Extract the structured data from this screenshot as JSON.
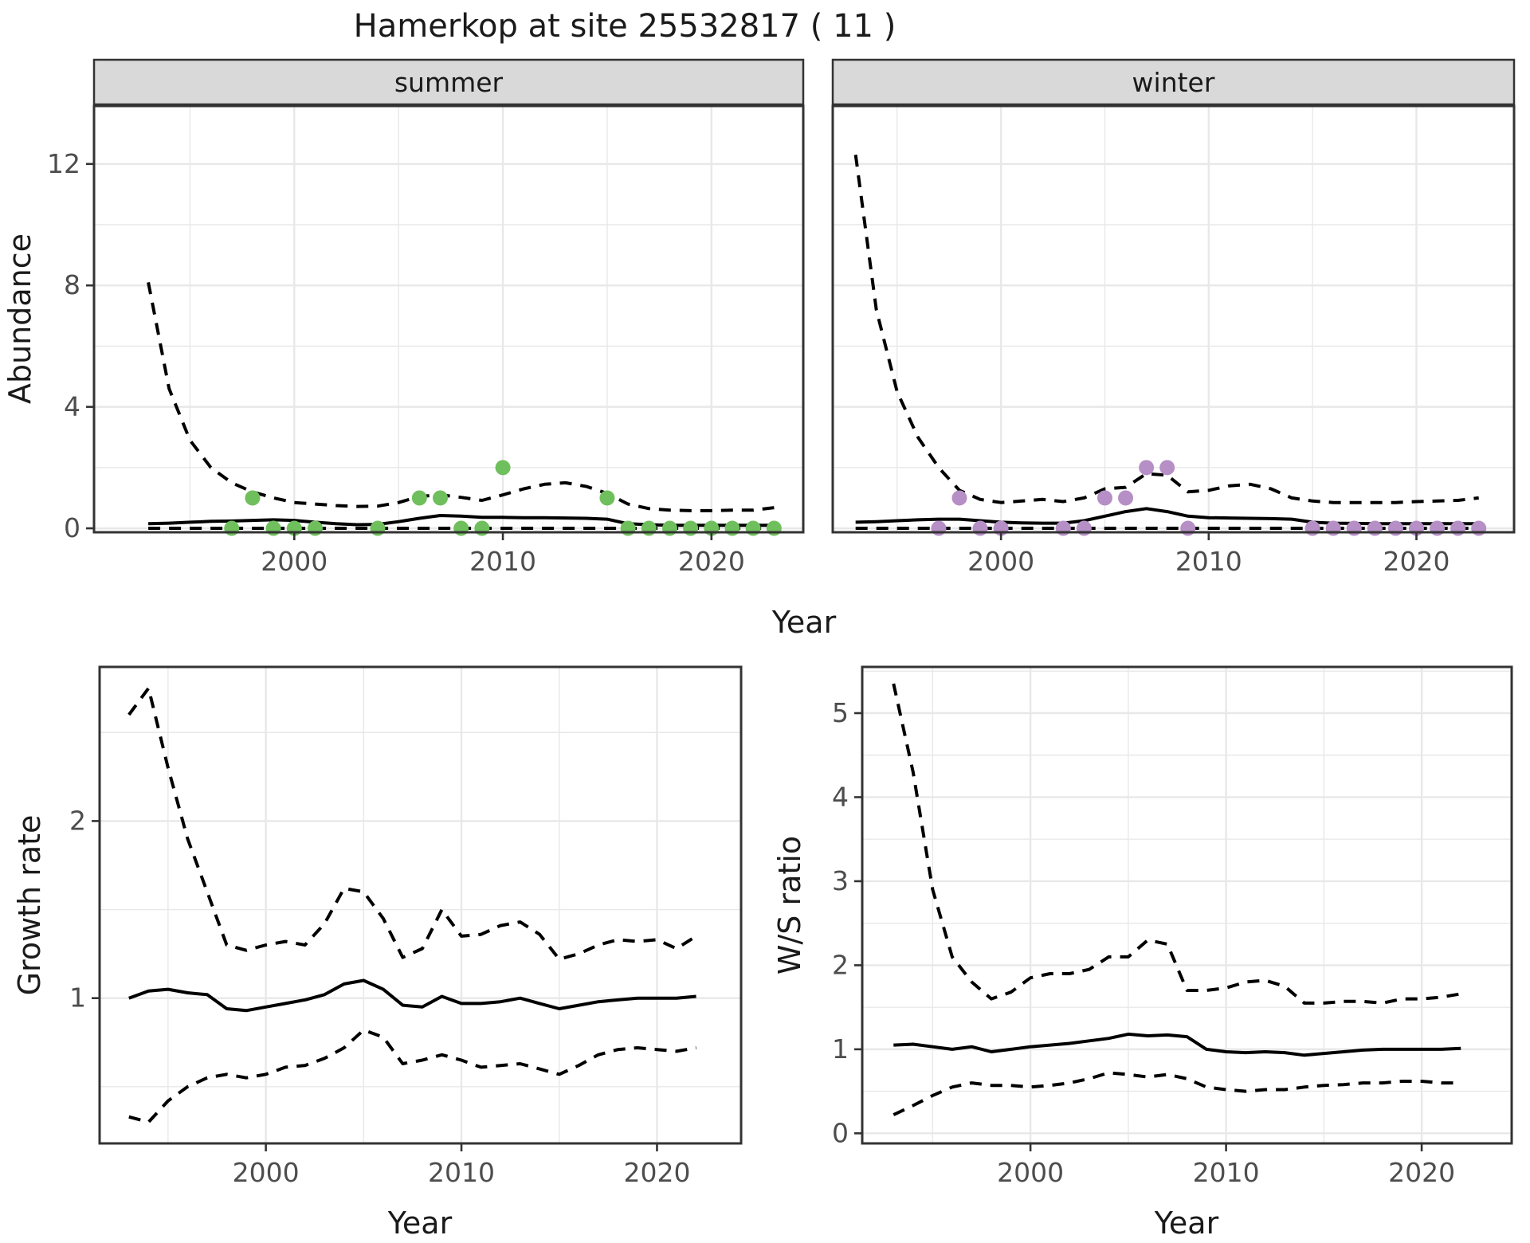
{
  "title": "Hamerkop at site 25532817 ( 11 )",
  "axes": {
    "abundance_ylabel": "Abundance",
    "top_xlabel": "Year",
    "growth_ylabel": "Growth rate",
    "growth_xlabel": "Year",
    "ws_ylabel": "W/S ratio",
    "ws_xlabel": "Year"
  },
  "colors": {
    "summer_point": "#6fbf5c",
    "winter_point": "#b58fc5",
    "line": "#000000",
    "grid": "#e8e8e8",
    "strip_bg": "#d9d9d9",
    "panel_border": "#333333",
    "tick_label": "#4d4d4d"
  },
  "chart_data": [
    {
      "id": "abundance-summer",
      "type": "line",
      "facet": "summer",
      "xlabel": "Year",
      "ylabel": "Abundance",
      "x": [
        1993,
        1994,
        1995,
        1996,
        1997,
        1998,
        1999,
        2000,
        2001,
        2002,
        2003,
        2004,
        2005,
        2006,
        2007,
        2008,
        2009,
        2010,
        2011,
        2012,
        2013,
        2014,
        2015,
        2016,
        2017,
        2018,
        2019,
        2020,
        2021,
        2022,
        2023
      ],
      "series": [
        {
          "name": "upper_95ci",
          "style": "dashed",
          "values": [
            8.1,
            4.6,
            2.9,
            2.0,
            1.5,
            1.2,
            1.0,
            0.85,
            0.8,
            0.75,
            0.72,
            0.73,
            0.85,
            1.05,
            1.1,
            1.02,
            0.92,
            1.1,
            1.3,
            1.45,
            1.5,
            1.38,
            1.15,
            0.8,
            0.65,
            0.6,
            0.58,
            0.58,
            0.6,
            0.6,
            0.68
          ]
        },
        {
          "name": "median",
          "style": "solid",
          "values": [
            0.15,
            0.17,
            0.2,
            0.23,
            0.24,
            0.26,
            0.28,
            0.26,
            0.2,
            0.15,
            0.12,
            0.13,
            0.22,
            0.33,
            0.42,
            0.4,
            0.36,
            0.36,
            0.35,
            0.35,
            0.34,
            0.33,
            0.3,
            0.15,
            0.12,
            0.1,
            0.1,
            0.1,
            0.1,
            0.1,
            0.1
          ]
        },
        {
          "name": "lower_95ci",
          "style": "dashed",
          "values": [
            0,
            0,
            0,
            0,
            0,
            0,
            0,
            0,
            0,
            0,
            0,
            0,
            0,
            0,
            0,
            0,
            0,
            0,
            0,
            0,
            0,
            0,
            0,
            0,
            0,
            0,
            0,
            0,
            0,
            0,
            0
          ]
        }
      ],
      "points": {
        "x": [
          1997,
          1998,
          1999,
          2000,
          2001,
          2004,
          2006,
          2007,
          2008,
          2009,
          2010,
          2015,
          2016,
          2017,
          2018,
          2019,
          2020,
          2021,
          2022,
          2023
        ],
        "y": [
          0,
          1,
          0,
          0,
          0,
          0,
          1,
          1,
          0,
          0,
          2,
          1,
          0,
          0,
          0,
          0,
          0,
          0,
          0,
          0
        ],
        "color": "#6fbf5c"
      },
      "xticks": [
        2000,
        2010,
        2020
      ],
      "yticks": [
        0,
        4,
        8,
        12
      ],
      "xminor": [
        1995,
        2005,
        2015
      ],
      "yminor": [
        2,
        6,
        10
      ],
      "xlim": [
        1990.4,
        2024.4
      ],
      "ylim": [
        -0.13,
        13.91
      ],
      "show_yticklabels": true
    },
    {
      "id": "abundance-winter",
      "type": "line",
      "facet": "winter",
      "xlabel": "Year",
      "ylabel": "Abundance",
      "x": [
        1993,
        1994,
        1995,
        1996,
        1997,
        1998,
        1999,
        2000,
        2001,
        2002,
        2003,
        2004,
        2005,
        2006,
        2007,
        2008,
        2009,
        2010,
        2011,
        2012,
        2013,
        2014,
        2015,
        2016,
        2017,
        2018,
        2019,
        2020,
        2021,
        2022,
        2023
      ],
      "series": [
        {
          "name": "upper_95ci",
          "style": "dashed",
          "values": [
            12.3,
            7.2,
            4.5,
            3.0,
            2.0,
            1.25,
            0.95,
            0.85,
            0.9,
            0.95,
            0.88,
            1.0,
            1.3,
            1.35,
            1.8,
            1.75,
            1.2,
            1.25,
            1.4,
            1.45,
            1.3,
            1.0,
            0.9,
            0.85,
            0.85,
            0.85,
            0.85,
            0.88,
            0.9,
            0.92,
            1.0
          ]
        },
        {
          "name": "median",
          "style": "solid",
          "values": [
            0.2,
            0.22,
            0.25,
            0.28,
            0.3,
            0.3,
            0.25,
            0.2,
            0.18,
            0.17,
            0.17,
            0.25,
            0.4,
            0.55,
            0.65,
            0.55,
            0.4,
            0.35,
            0.34,
            0.33,
            0.32,
            0.3,
            0.2,
            0.17,
            0.16,
            0.15,
            0.15,
            0.15,
            0.15,
            0.15,
            0.15
          ]
        },
        {
          "name": "lower_95ci",
          "style": "dashed",
          "values": [
            0,
            0,
            0,
            0,
            0,
            0,
            0,
            0,
            0,
            0,
            0,
            0,
            0,
            0,
            0,
            0,
            0,
            0,
            0,
            0,
            0,
            0,
            0,
            0,
            0,
            0,
            0,
            0,
            0,
            0,
            0
          ]
        }
      ],
      "points": {
        "x": [
          1997,
          1998,
          1999,
          2000,
          2003,
          2004,
          2005,
          2006,
          2007,
          2008,
          2009,
          2015,
          2016,
          2017,
          2018,
          2019,
          2020,
          2021,
          2022,
          2023
        ],
        "y": [
          0,
          1,
          0,
          0,
          0,
          0,
          1,
          1,
          2,
          2,
          0,
          0,
          0,
          0,
          0,
          0,
          0,
          0,
          0,
          0
        ],
        "color": "#b58fc5"
      },
      "xticks": [
        2000,
        2010,
        2020
      ],
      "yticks": [
        0,
        4,
        8,
        12
      ],
      "xminor": [
        1995,
        2005,
        2015
      ],
      "yminor": [
        2,
        6,
        10
      ],
      "xlim": [
        1991.9,
        2024.7
      ],
      "ylim": [
        -0.13,
        13.91
      ],
      "show_yticklabels": false
    },
    {
      "id": "growth",
      "type": "line",
      "facet": null,
      "xlabel": "Year",
      "ylabel": "Growth rate",
      "x": [
        1993,
        1994,
        1995,
        1996,
        1997,
        1998,
        1999,
        2000,
        2001,
        2002,
        2003,
        2004,
        2005,
        2006,
        2007,
        2008,
        2009,
        2010,
        2011,
        2012,
        2013,
        2014,
        2015,
        2016,
        2017,
        2018,
        2019,
        2020,
        2021,
        2022
      ],
      "series": [
        {
          "name": "upper_95ci",
          "style": "dashed",
          "values": [
            2.6,
            2.75,
            2.3,
            1.9,
            1.6,
            1.3,
            1.27,
            1.3,
            1.32,
            1.3,
            1.42,
            1.62,
            1.6,
            1.45,
            1.23,
            1.28,
            1.5,
            1.35,
            1.36,
            1.41,
            1.43,
            1.36,
            1.22,
            1.25,
            1.3,
            1.33,
            1.32,
            1.33,
            1.28,
            1.35
          ]
        },
        {
          "name": "median",
          "style": "solid",
          "values": [
            1.0,
            1.04,
            1.05,
            1.03,
            1.02,
            0.94,
            0.93,
            0.95,
            0.97,
            0.99,
            1.02,
            1.08,
            1.1,
            1.05,
            0.96,
            0.95,
            1.01,
            0.97,
            0.97,
            0.98,
            1.0,
            0.97,
            0.94,
            0.96,
            0.98,
            0.99,
            1.0,
            1.0,
            1.0,
            1.01
          ]
        },
        {
          "name": "lower_95ci",
          "style": "dashed",
          "values": [
            0.33,
            0.3,
            0.42,
            0.5,
            0.55,
            0.57,
            0.55,
            0.57,
            0.61,
            0.62,
            0.66,
            0.72,
            0.82,
            0.78,
            0.63,
            0.65,
            0.68,
            0.65,
            0.61,
            0.62,
            0.63,
            0.6,
            0.57,
            0.62,
            0.68,
            0.71,
            0.72,
            0.71,
            0.7,
            0.72
          ]
        }
      ],
      "points": null,
      "xticks": [
        2000,
        2010,
        2020
      ],
      "yticks": [
        1,
        2
      ],
      "xminor": [
        1995,
        2005,
        2015
      ],
      "yminor": [
        0.5,
        1.5,
        2.5
      ],
      "xlim": [
        1991.5,
        2024.3
      ],
      "ylim": [
        0.18,
        2.87
      ],
      "show_yticklabels": true
    },
    {
      "id": "ws",
      "type": "line",
      "facet": null,
      "xlabel": "Year",
      "ylabel": "W/S ratio",
      "x": [
        1993,
        1994,
        1995,
        1996,
        1997,
        1998,
        1999,
        2000,
        2001,
        2002,
        2003,
        2004,
        2005,
        2006,
        2007,
        2008,
        2009,
        2010,
        2011,
        2012,
        2013,
        2014,
        2015,
        2016,
        2017,
        2018,
        2019,
        2020,
        2021,
        2022
      ],
      "series": [
        {
          "name": "upper_95ci",
          "style": "dashed",
          "values": [
            5.35,
            4.3,
            2.9,
            2.1,
            1.8,
            1.6,
            1.68,
            1.85,
            1.9,
            1.9,
            1.95,
            2.1,
            2.1,
            2.3,
            2.25,
            1.7,
            1.7,
            1.73,
            1.8,
            1.82,
            1.75,
            1.55,
            1.55,
            1.57,
            1.57,
            1.55,
            1.6,
            1.6,
            1.62,
            1.66
          ]
        },
        {
          "name": "median",
          "style": "solid",
          "values": [
            1.05,
            1.06,
            1.03,
            1.0,
            1.03,
            0.97,
            1.0,
            1.03,
            1.05,
            1.07,
            1.1,
            1.13,
            1.18,
            1.16,
            1.17,
            1.15,
            1.0,
            0.97,
            0.96,
            0.97,
            0.96,
            0.93,
            0.95,
            0.97,
            0.99,
            1.0,
            1.0,
            1.0,
            1.0,
            1.01
          ]
        },
        {
          "name": "lower_95ci",
          "style": "dashed",
          "values": [
            0.22,
            0.33,
            0.45,
            0.55,
            0.6,
            0.57,
            0.57,
            0.55,
            0.57,
            0.6,
            0.65,
            0.72,
            0.7,
            0.67,
            0.7,
            0.65,
            0.55,
            0.52,
            0.5,
            0.52,
            0.52,
            0.55,
            0.57,
            0.58,
            0.6,
            0.6,
            0.62,
            0.62,
            0.6,
            0.6
          ]
        }
      ],
      "points": null,
      "xticks": [
        2000,
        2010,
        2020
      ],
      "yticks": [
        0,
        1,
        2,
        3,
        4,
        5
      ],
      "xminor": [
        1995,
        2005,
        2015
      ],
      "yminor": [
        0.5,
        1.5,
        2.5,
        3.5,
        4.5,
        5.5
      ],
      "xlim": [
        1991.4,
        2024.6
      ],
      "ylim": [
        -0.12,
        5.55
      ],
      "show_yticklabels": true
    }
  ]
}
